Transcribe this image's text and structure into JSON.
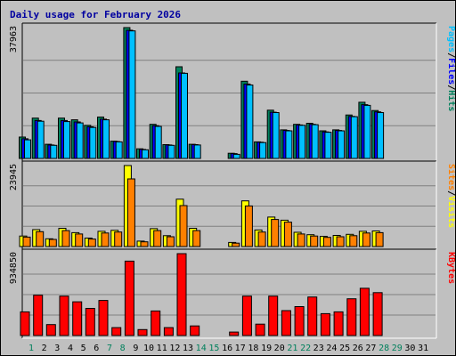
{
  "chart_data": {
    "type": "bar",
    "title": "Daily usage for February 2026",
    "categories": [
      "1",
      "2",
      "3",
      "4",
      "5",
      "6",
      "7",
      "8",
      "9",
      "10",
      "11",
      "12",
      "13",
      "14",
      "15",
      "16",
      "17",
      "18",
      "19",
      "20",
      "21",
      "22",
      "23",
      "24",
      "25",
      "26",
      "27",
      "28",
      "29",
      "30",
      "31"
    ],
    "weekend_days": [
      "1",
      "7",
      "8",
      "14",
      "15",
      "21",
      "22",
      "28",
      "29"
    ],
    "colors": {
      "hits": "#00805c",
      "files": "#0000ff",
      "pages": "#00c0ff",
      "visits": "#ffff00",
      "sites": "#ff8000",
      "kbytes": "#ff0000",
      "weekday_label": "#000000",
      "weekend_label": "#00805c"
    },
    "panels": [
      {
        "name": "hits-files-pages",
        "ymax_label": "37963",
        "ymax": 37963,
        "legend": [
          {
            "text": "Pages",
            "color": "#00c0ff"
          },
          {
            "text": "/",
            "color": "#000000"
          },
          {
            "text": "Files",
            "color": "#0000ff"
          },
          {
            "text": "/",
            "color": "#000000"
          },
          {
            "text": "Hits",
            "color": "#00805c"
          }
        ],
        "series": [
          {
            "name": "Hits",
            "color": "#00805c",
            "values": [
              6200,
              11700,
              4100,
              11700,
              11200,
              9600,
              12000,
              5000,
              37963,
              2800,
              9900,
              4000,
              26600,
              4100,
              0,
              0,
              1500,
              22400,
              4800,
              14000,
              8300,
              9900,
              10200,
              8000,
              8300,
              12600,
              16300,
              13900,
              0,
              0,
              0
            ]
          },
          {
            "name": "Files",
            "color": "#0000ff",
            "values": [
              5700,
              11000,
              3900,
              11000,
              10600,
              9200,
              11400,
              4900,
              37200,
              2600,
              9500,
              3900,
              24800,
              4000,
              0,
              0,
              1400,
              21600,
              4700,
              13400,
              8100,
              9700,
              9900,
              7700,
              8100,
              12200,
              15600,
              13500,
              0,
              0,
              0
            ]
          },
          {
            "name": "Pages",
            "color": "#00c0ff",
            "values": [
              5400,
              10800,
              3800,
              10700,
              10300,
              9000,
              11200,
              4800,
              37000,
              2500,
              9300,
              3800,
              24700,
              3900,
              0,
              0,
              1200,
              21300,
              4600,
              13300,
              8000,
              9600,
              9800,
              7600,
              8000,
              12100,
              15400,
              13300,
              0,
              0,
              0
            ]
          }
        ]
      },
      {
        "name": "visits-sites",
        "ymax_label": "23945",
        "ymax": 23945,
        "legend": [
          {
            "text": "Sites",
            "color": "#ff8000"
          },
          {
            "text": "/",
            "color": "#000000"
          },
          {
            "text": "Visits",
            "color": "#ffff00"
          }
        ],
        "series": [
          {
            "name": "Visits",
            "color": "#ffff00",
            "values": [
              3100,
              5000,
              2300,
              5400,
              4100,
              2500,
              4500,
              4800,
              23945,
              1600,
              5300,
              3200,
              14000,
              5400,
              0,
              0,
              1200,
              13500,
              4900,
              8700,
              7800,
              4200,
              3500,
              3000,
              3300,
              3600,
              4500,
              4600,
              0,
              0,
              0
            ]
          },
          {
            "name": "Sites",
            "color": "#ff8000",
            "values": [
              2800,
              4400,
              2100,
              4700,
              3700,
              2200,
              4000,
              4300,
              20000,
              1400,
              4700,
              2900,
              12100,
              4700,
              0,
              0,
              1000,
              12000,
              4300,
              8000,
              7200,
              3700,
              3100,
              2700,
              2900,
              3200,
              4000,
              4100,
              0,
              0,
              0
            ]
          }
        ]
      },
      {
        "name": "kbytes",
        "ymax_label": "934850",
        "ymax": 934850,
        "legend": [
          {
            "text": "KBytes",
            "color": "#ff0000"
          }
        ],
        "series": [
          {
            "name": "KBytes",
            "color": "#ff0000",
            "values": [
              270000,
              460000,
              125000,
              450000,
              385000,
              310000,
              400000,
              90000,
              850000,
              68000,
              280000,
              90000,
              934850,
              110000,
              0,
              0,
              40000,
              450000,
              130000,
              450000,
              285000,
              330000,
              440000,
              250000,
              270000,
              420000,
              540000,
              490000,
              0,
              0,
              0
            ]
          }
        ]
      }
    ]
  }
}
